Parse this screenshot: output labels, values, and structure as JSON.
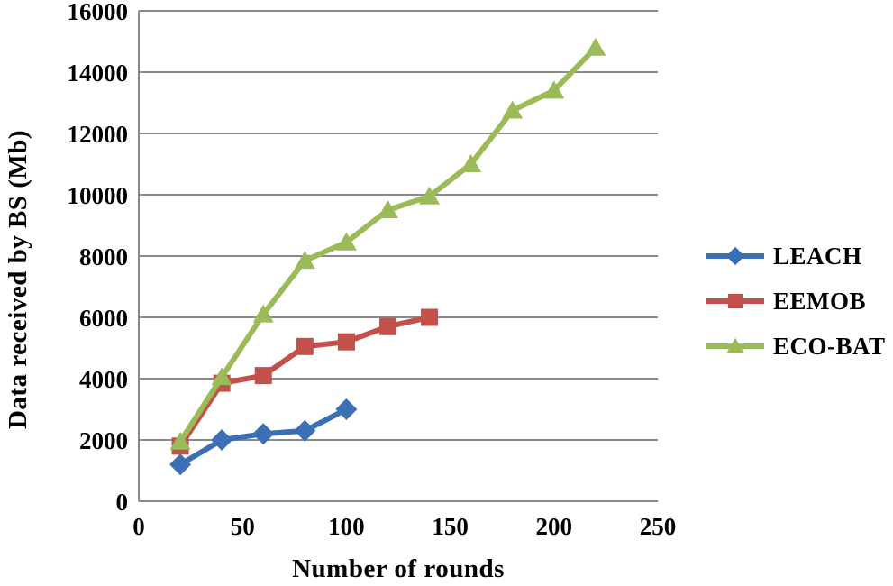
{
  "chart_data": {
    "type": "line",
    "title": "",
    "xlabel": "Number of rounds",
    "ylabel": "Data received  by BS (Mb)",
    "xlim": [
      0,
      250
    ],
    "ylim": [
      0,
      16000
    ],
    "x_ticks": [
      0,
      50,
      100,
      150,
      200,
      250
    ],
    "y_ticks": [
      0,
      2000,
      4000,
      6000,
      8000,
      10000,
      12000,
      14000,
      16000
    ],
    "grid": "horizontal",
    "legend_position": "right",
    "series": [
      {
        "name": "LEACH",
        "color": "#3C70B4",
        "marker": "diamond",
        "x": [
          20,
          40,
          60,
          80,
          100
        ],
        "values": [
          1200,
          2000,
          2200,
          2300,
          3000
        ]
      },
      {
        "name": "EEMOB",
        "color": "#C3504B",
        "marker": "square",
        "x": [
          20,
          40,
          60,
          80,
          100,
          120,
          140
        ],
        "values": [
          1800,
          3850,
          4100,
          5050,
          5200,
          5700,
          6000
        ]
      },
      {
        "name": "ECO-BAT",
        "color": "#9BBB59",
        "marker": "triangle",
        "x": [
          20,
          40,
          60,
          80,
          100,
          120,
          140,
          160,
          180,
          200,
          220
        ],
        "values": [
          1950,
          4050,
          6100,
          7850,
          8450,
          9500,
          9950,
          11000,
          12750,
          13400,
          14800
        ]
      }
    ]
  },
  "colors": {
    "gridline": "#8A8A8A",
    "axis": "#8A8A8A",
    "text": "#000000",
    "background": "#FFFFFF"
  }
}
